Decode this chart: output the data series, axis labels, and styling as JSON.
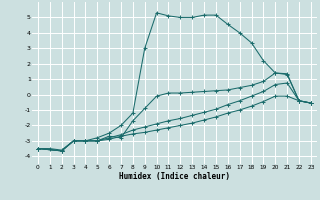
{
  "xlabel": "Humidex (Indice chaleur)",
  "bg_color": "#cce0e0",
  "grid_color": "#ffffff",
  "line_color": "#1a6b6b",
  "xlim": [
    -0.5,
    23.5
  ],
  "ylim": [
    -4.5,
    6.0
  ],
  "yticks": [
    -4,
    -3,
    -2,
    -1,
    0,
    1,
    2,
    3,
    4,
    5
  ],
  "xticks": [
    0,
    1,
    2,
    3,
    4,
    5,
    6,
    7,
    8,
    9,
    10,
    11,
    12,
    13,
    14,
    15,
    16,
    17,
    18,
    19,
    20,
    21,
    22,
    23
  ],
  "line1_x": [
    0,
    1,
    2,
    3,
    4,
    5,
    6,
    7,
    8,
    9,
    10,
    11,
    12,
    13,
    14,
    15,
    16,
    17,
    18,
    19,
    20,
    21,
    22,
    23
  ],
  "line1_y": [
    -3.5,
    -3.5,
    -3.6,
    -3.0,
    -3.0,
    -2.8,
    -2.5,
    -2.0,
    -1.2,
    3.0,
    5.3,
    5.1,
    5.0,
    5.0,
    5.15,
    5.15,
    4.55,
    4.0,
    3.35,
    2.2,
    1.4,
    1.3,
    -0.4,
    -0.55
  ],
  "line2_x": [
    0,
    2,
    3,
    4,
    5,
    6,
    7,
    8,
    9,
    10,
    11,
    12,
    13,
    14,
    15,
    16,
    17,
    18,
    19,
    20,
    21,
    22,
    23
  ],
  "line2_y": [
    -3.5,
    -3.65,
    -3.0,
    -3.0,
    -3.0,
    -2.7,
    -2.8,
    -1.7,
    -0.9,
    -0.1,
    0.1,
    0.1,
    0.15,
    0.2,
    0.25,
    0.3,
    0.45,
    0.6,
    0.85,
    1.4,
    1.35,
    -0.4,
    -0.55
  ],
  "line3_x": [
    0,
    2,
    3,
    4,
    5,
    6,
    7,
    8,
    9,
    10,
    11,
    12,
    13,
    14,
    15,
    16,
    17,
    18,
    19,
    20,
    21,
    22,
    23
  ],
  "line3_y": [
    -3.5,
    -3.65,
    -3.0,
    -3.0,
    -3.0,
    -2.8,
    -2.6,
    -2.3,
    -2.1,
    -1.9,
    -1.7,
    -1.55,
    -1.35,
    -1.15,
    -0.95,
    -0.65,
    -0.4,
    -0.1,
    0.2,
    0.65,
    0.75,
    -0.4,
    -0.55
  ],
  "line4_x": [
    0,
    2,
    3,
    4,
    5,
    6,
    7,
    8,
    9,
    10,
    11,
    12,
    13,
    14,
    15,
    16,
    17,
    18,
    19,
    20,
    21,
    22,
    23
  ],
  "line4_y": [
    -3.5,
    -3.65,
    -3.0,
    -3.0,
    -3.0,
    -2.9,
    -2.7,
    -2.55,
    -2.45,
    -2.3,
    -2.15,
    -2.0,
    -1.85,
    -1.65,
    -1.45,
    -1.2,
    -1.0,
    -0.75,
    -0.45,
    -0.1,
    -0.1,
    -0.4,
    -0.55
  ]
}
